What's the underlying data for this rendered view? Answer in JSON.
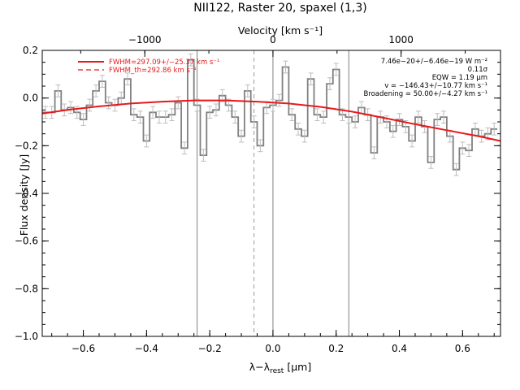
{
  "chart_data": {
    "type": "line",
    "title": "NII122, Raster 20, spaxel (1,3)",
    "xlabel_top": "Velocity [km s⁻¹]",
    "xlabel_bottom": "λ−λ",
    "xlabel_bottom_sub": "rest",
    "xlabel_bottom_unit": " [μm]",
    "ylabel": "Flux density [Jy]",
    "xlim": [
      -0.73,
      0.72
    ],
    "ylim": [
      -1.0,
      0.2
    ],
    "velocity_per_micron": 2466,
    "x_ticks": [
      -0.6,
      -0.4,
      -0.2,
      0.0,
      0.2,
      0.4,
      0.6
    ],
    "x_tick_labels": [
      "−0.6",
      "−0.4",
      "−0.2",
      "0.0",
      "0.2",
      "0.4",
      "0.6"
    ],
    "y_ticks": [
      0.2,
      0.0,
      -0.2,
      -0.4,
      -0.6,
      -0.8,
      -1.0
    ],
    "y_tick_labels": [
      "0.2",
      "0.0",
      "−0.2",
      "−0.4",
      "−0.6",
      "−0.8",
      "−1.0"
    ],
    "v_ticks": [
      -1000,
      0,
      1000
    ],
    "v_tick_labels": [
      "−1000",
      "0",
      "1000"
    ],
    "vertical_lines": [
      -0.24,
      0.0,
      0.24
    ],
    "dashed_line": -0.06,
    "legend": [
      {
        "label": "FWHM=297.09+/−25.37 km s⁻¹",
        "style": "solid",
        "color": "#e8181a"
      },
      {
        "label": "FWHM_th=292.86 km s⁻¹",
        "style": "dashed",
        "color": "#e8181a"
      }
    ],
    "annotations": [
      "7.46e−20+/−6.46e−19 W m⁻²",
      "0.11σ",
      "EQW = 1.19 μm",
      "v = −146.43+/−10.77 km s⁻¹",
      "Broadening = 50.00+/−4.27 km s⁻¹"
    ],
    "series": [
      {
        "style": "step",
        "color": "#808080",
        "x": [
          -0.72,
          -0.7,
          -0.68,
          -0.66,
          -0.64,
          -0.62,
          -0.6,
          -0.58,
          -0.56,
          -0.54,
          -0.52,
          -0.5,
          -0.48,
          -0.46,
          -0.44,
          -0.42,
          -0.4,
          -0.38,
          -0.36,
          -0.34,
          -0.32,
          -0.3,
          -0.28,
          -0.26,
          -0.24,
          -0.22,
          -0.2,
          -0.18,
          -0.16,
          -0.14,
          -0.12,
          -0.1,
          -0.08,
          -0.06,
          -0.04,
          -0.02,
          0.0,
          0.02,
          0.04,
          0.06,
          0.08,
          0.1,
          0.12,
          0.14,
          0.16,
          0.18,
          0.2,
          0.22,
          0.24,
          0.26,
          0.28,
          0.3,
          0.32,
          0.34,
          0.36,
          0.38,
          0.4,
          0.42,
          0.44,
          0.46,
          0.48,
          0.5,
          0.52,
          0.54,
          0.56,
          0.58,
          0.6,
          0.62,
          0.64,
          0.66,
          0.68,
          0.7
        ],
        "y": [
          -0.06,
          -0.06,
          0.03,
          -0.05,
          -0.04,
          -0.06,
          -0.09,
          -0.03,
          0.03,
          0.07,
          -0.02,
          -0.03,
          0.0,
          0.08,
          -0.07,
          -0.08,
          -0.18,
          -0.06,
          -0.08,
          -0.08,
          -0.07,
          -0.02,
          -0.21,
          0.16,
          -0.03,
          -0.24,
          -0.06,
          -0.05,
          0.01,
          -0.03,
          -0.08,
          -0.16,
          0.03,
          -0.1,
          -0.2,
          -0.04,
          -0.03,
          -0.01,
          0.13,
          -0.07,
          -0.13,
          -0.16,
          0.08,
          -0.07,
          -0.08,
          0.06,
          0.12,
          -0.07,
          -0.08,
          -0.1,
          -0.04,
          -0.07,
          -0.23,
          -0.08,
          -0.1,
          -0.14,
          -0.09,
          -0.12,
          -0.18,
          -0.08,
          -0.12,
          -0.27,
          -0.09,
          -0.08,
          -0.16,
          -0.3,
          -0.21,
          -0.22,
          -0.13,
          -0.16,
          -0.15,
          -0.13
        ],
        "error": 0.025
      },
      {
        "style": "smooth",
        "color": "#e8181a",
        "x": [
          -0.73,
          -0.65,
          -0.55,
          -0.45,
          -0.35,
          -0.25,
          -0.15,
          -0.05,
          0.05,
          0.15,
          0.25,
          0.35,
          0.45,
          0.55,
          0.65,
          0.72
        ],
        "y": [
          -0.065,
          -0.05,
          -0.035,
          -0.023,
          -0.015,
          -0.01,
          -0.01,
          -0.015,
          -0.023,
          -0.037,
          -0.057,
          -0.083,
          -0.11,
          -0.135,
          -0.16,
          -0.18
        ]
      }
    ]
  }
}
